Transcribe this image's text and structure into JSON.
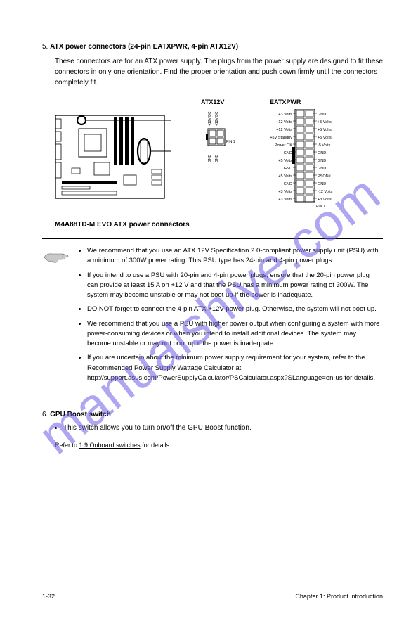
{
  "watermark": "manualshive.com",
  "connector": {
    "num": "5.",
    "title": "ATX power connectors (24-pin EATXPWR, 4-pin ATX12V)",
    "desc": "These connectors are for an ATX power supply. The plugs from the power supply are designed to fit these connectors in only one orientation. Find the proper orientation and push down firmly until the connectors completely fit."
  },
  "diagram": {
    "atx12v_label": "ATX12V",
    "eatxpwr_label": "EATXPWR",
    "caption": "M4A88TD-M EVO ATX power connectors",
    "atx12v_pins": {
      "top": [
        "+12V DC",
        "+12V DC"
      ],
      "bottom": [
        "GND",
        "GND"
      ]
    },
    "eatxpwr_left": [
      "+3 Volts",
      "+12 Volts",
      "+12 Volts",
      "+5V Standby",
      "Power OK",
      "GND",
      "+5 Volts",
      "GND",
      "+5 Volts",
      "GND",
      "+3 Volts",
      "+3 Volts"
    ],
    "eatxpwr_right": [
      "GND",
      "+5 Volts",
      "+5 Volts",
      "+5 Volts",
      "-5 Volts",
      "GND",
      "GND",
      "GND",
      "PSON#",
      "GND",
      "-12 Volts",
      "+3 Volts"
    ],
    "pin1": "PIN 1",
    "colors": {
      "stroke": "#000000",
      "fill_white": "#ffffff",
      "fill_light": "#ffffff"
    }
  },
  "notes": [
    "We recommend that you use an ATX 12V Specification 2.0‑compliant power supply unit (PSU) with a minimum of 300W power rating. This PSU type has 24-pin and 4-pin power plugs.",
    "If you intend to use a PSU with 20-pin and 4-pin power plugs, ensure that the 20-pin power plug can provide at least 15 A on +12 V and that the PSU has a minimum power rating of 300W. The system may become unstable or may not boot up if the power is inadequate.",
    "DO NOT forget to connect the 4-pin ATX +12V power plug. Otherwise, the system will not boot up.",
    "We recommend that you use a PSU with higher power output when configuring a system with more power-consuming devices or when you intend to install additional devices. The system may become unstable or may not boot up if the power is inadequate.",
    "If you are uncertain about the minimum power supply requirement for your system, refer to the Recommended Power Supply Wattage Calculator at http://support.asus.com/PowerSupplyCalculator/PSCalculator.aspx?SLanguage=en-us for details."
  ],
  "gpu": {
    "num": "6.",
    "title": "GPU Boost switch",
    "desc": "This switch allows you to turn on/off the GPU Boost function.",
    "ref_prefix": "Refer to",
    "ref_link": "1.9 Onboard switches",
    "ref_suffix": "for details."
  },
  "footer": {
    "left": "1-32",
    "right": "Chapter 1: Product introduction"
  }
}
